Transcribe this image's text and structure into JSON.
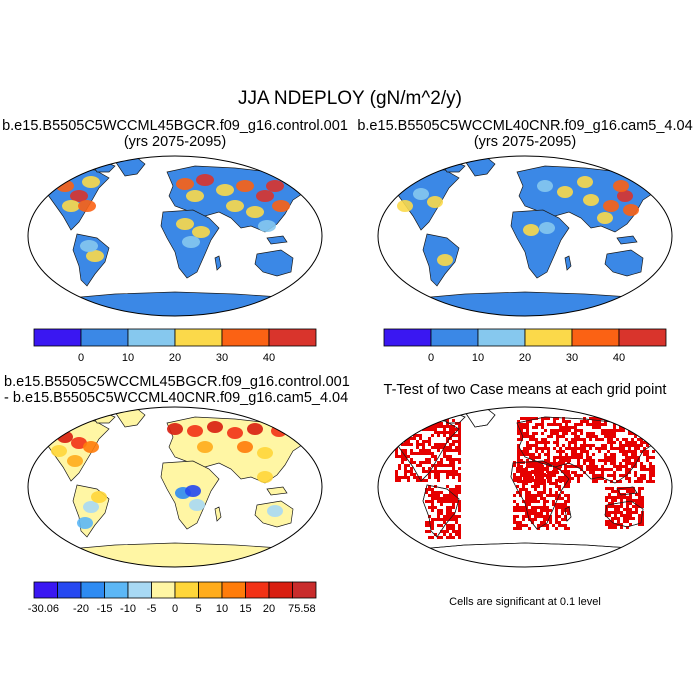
{
  "figure": {
    "title": "JJA NDEPLOY (gN/m^2/y)",
    "footnote": "Cells are significant at 0.1 level"
  },
  "panels": [
    {
      "id": "control",
      "title_line1": "b.e15.B5505C5WCCML45BGCR.f09_g16.control.001",
      "title_line2": "(yrs 2075-2095)",
      "colorbar": {
        "colors": [
          "#3a17f2",
          "#3b88e6",
          "#86c8ee",
          "#fbd94a",
          "#fb6214",
          "#d9342c"
        ],
        "labels": [
          "0",
          "10",
          "20",
          "30",
          "40"
        ]
      }
    },
    {
      "id": "cam5",
      "title_line1": "b.e15.B5505C5WCCML40CNR.f09_g16.cam5_4.04",
      "title_line2": "(yrs 2075-2095)",
      "colorbar": {
        "colors": [
          "#3a17f2",
          "#3b88e6",
          "#86c8ee",
          "#fbd94a",
          "#fb6214",
          "#d9342c"
        ],
        "labels": [
          "0",
          "10",
          "20",
          "30",
          "40"
        ]
      }
    },
    {
      "id": "difference",
      "title_line1": "b.e15.B5505C5WCCML45BGCR.f09_g16.control.001",
      "title_line2": "- b.e15.B5505C5WCCML40CNR.f09_g16.cam5_4.04",
      "colorbar": {
        "colors": [
          "#3a17f2",
          "#2648f0",
          "#2e8bf2",
          "#5cb7f6",
          "#a8d9f4",
          "#fff6a4",
          "#ffd63a",
          "#ffac1c",
          "#ff7c0a",
          "#f23216",
          "#d81e10",
          "#c92c2c"
        ],
        "labels": [
          "-30.06",
          "-20",
          "-15",
          "-10",
          "-5",
          "0",
          "5",
          "10",
          "15",
          "20",
          "75.58"
        ]
      }
    },
    {
      "id": "ttest",
      "title": "T-Test of two Case means at each grid point",
      "mark_color": "#e60000"
    }
  ]
}
